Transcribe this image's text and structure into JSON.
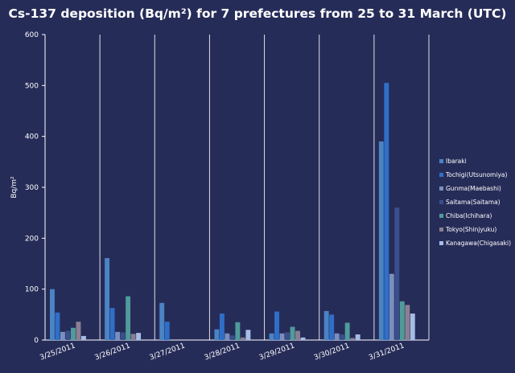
{
  "chart_data": {
    "type": "bar",
    "title": "Cs-137 deposition (Bq/m²) for 7 prefectures from 25 to 31 March (UTC)",
    "xlabel": "",
    "ylabel": "Bq/m²",
    "ylim": [
      0,
      600
    ],
    "yticks": [
      0,
      100,
      200,
      300,
      400,
      500,
      600
    ],
    "grid": "vertical category separators",
    "legend_position": "right",
    "categories": [
      "3/25/2011",
      "3/26/2011",
      "3/27/2011",
      "3/28/2011",
      "3/29/2011",
      "3/30/2011",
      "3/31/2011"
    ],
    "series": [
      {
        "name": "Ibaraki",
        "color": "#4a84c4",
        "values": [
          100,
          161,
          73,
          21,
          13,
          57,
          390
        ]
      },
      {
        "name": "Tochigi(Utsunomiya)",
        "color": "#2f6fc8",
        "values": [
          54,
          63,
          36,
          52,
          56,
          50,
          505
        ]
      },
      {
        "name": "Gunma(Maebashi)",
        "color": "#7a8fbf",
        "values": [
          16,
          16,
          0,
          13,
          13,
          13,
          130
        ]
      },
      {
        "name": "Saitama(Saitama)",
        "color": "#3a4f8c",
        "values": [
          18,
          15,
          0,
          9,
          15,
          11,
          260
        ]
      },
      {
        "name": "Chiba(Ichihara)",
        "color": "#4f9b9b",
        "values": [
          24,
          86,
          0,
          35,
          26,
          34,
          76
        ]
      },
      {
        "name": "Tokyo(Shinjyuku)",
        "color": "#8a7f92",
        "values": [
          36,
          12,
          0,
          5,
          18,
          4,
          69
        ]
      },
      {
        "name": "Kanagawa(Chigasaki)",
        "color": "#a6bce6",
        "values": [
          8,
          14,
          0,
          20,
          5,
          11,
          52
        ]
      }
    ]
  }
}
